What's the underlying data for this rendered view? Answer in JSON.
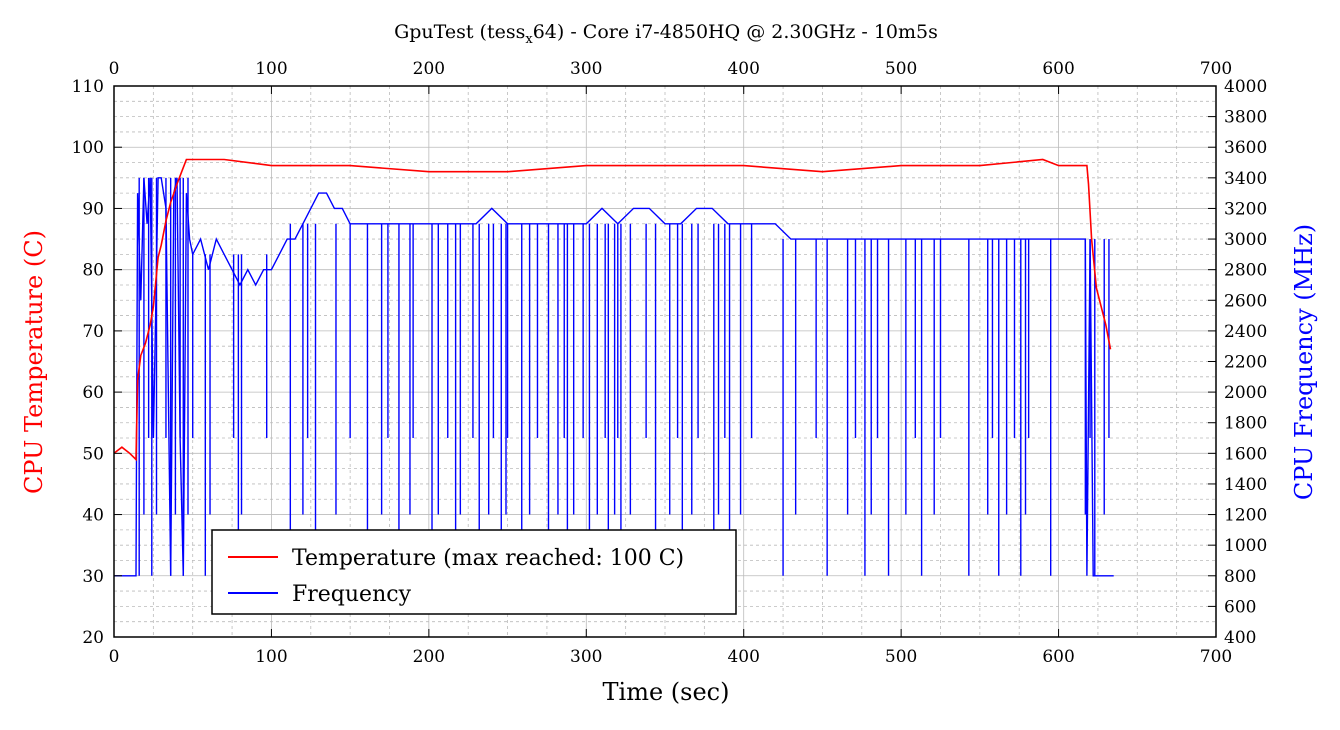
{
  "chart_data": {
    "type": "line",
    "title_main": "GpuTest (tess",
    "title_sub": "x",
    "title_rest": "64) - Core i7-4850HQ @ 2.30GHz - 10m5s",
    "xlabel": "Time (sec)",
    "ylabel_left": "CPU Temperature (C)",
    "ylabel_right": "CPU Frequency (MHz)",
    "xlim": [
      0,
      700
    ],
    "ylim_left": [
      20,
      110
    ],
    "ylim_right": [
      400,
      4000
    ],
    "xticks": [
      "0",
      "100",
      "200",
      "300",
      "400",
      "500",
      "600",
      "700"
    ],
    "yticks_left": [
      "20",
      "30",
      "40",
      "50",
      "60",
      "70",
      "80",
      "90",
      "100",
      "110"
    ],
    "yticks_right": [
      "400",
      "600",
      "800",
      "1000",
      "1200",
      "1400",
      "1600",
      "1800",
      "2000",
      "2200",
      "2400",
      "2600",
      "2800",
      "3000",
      "3200",
      "3400",
      "3600",
      "3800",
      "4000"
    ],
    "grid": true,
    "legend_position": "bottom-left",
    "series": [
      {
        "name": "Temperature (max reached: 100 C)",
        "axis": "left",
        "color": "#ff0000",
        "x": [
          0,
          5,
          10,
          14,
          15,
          17,
          20,
          23,
          25,
          28,
          30,
          33,
          36,
          40,
          43,
          46,
          48,
          55,
          70,
          100,
          150,
          200,
          250,
          300,
          350,
          400,
          450,
          500,
          550,
          590,
          600,
          612,
          618,
          619,
          621,
          624,
          627,
          630,
          633
        ],
        "y": [
          50,
          51,
          50,
          49,
          62,
          66,
          68,
          71,
          74,
          82,
          84,
          88,
          91,
          94,
          96,
          98,
          98,
          98,
          98,
          97,
          97,
          96,
          96,
          97,
          97,
          97,
          96,
          97,
          97,
          98,
          97,
          97,
          97,
          94,
          85,
          77,
          74,
          71,
          67
        ]
      },
      {
        "name": "Frequency",
        "axis": "right",
        "color": "#0000ff",
        "x": [
          0,
          14,
          15,
          17,
          19,
          21,
          23,
          25,
          28,
          30,
          33,
          36,
          38,
          40,
          42,
          44,
          46,
          48,
          50,
          55,
          60,
          65,
          70,
          75,
          80,
          85,
          90,
          95,
          100,
          105,
          110,
          115,
          120,
          125,
          130,
          135,
          140,
          145,
          150,
          155,
          160,
          165,
          170,
          180,
          190,
          200,
          210,
          220,
          230,
          240,
          250,
          260,
          270,
          280,
          290,
          300,
          310,
          320,
          330,
          340,
          350,
          360,
          370,
          380,
          390,
          400,
          410,
          420,
          430,
          440,
          450,
          460,
          470,
          480,
          490,
          500,
          510,
          520,
          530,
          540,
          550,
          560,
          570,
          580,
          590,
          600,
          610,
          615,
          617,
          618,
          620,
          622,
          625,
          628,
          630,
          632,
          635
        ],
        "y": [
          800,
          800,
          3300,
          2600,
          3400,
          3100,
          3400,
          1700,
          3400,
          3400,
          3200,
          800,
          3300,
          3400,
          1700,
          800,
          3300,
          3000,
          2900,
          3000,
          2800,
          3000,
          2900,
          2800,
          2700,
          2800,
          2700,
          2800,
          2800,
          2900,
          3000,
          3000,
          3100,
          3200,
          3300,
          3300,
          3200,
          3200,
          3100,
          3100,
          3100,
          3100,
          3100,
          3100,
          3100,
          3100,
          3100,
          3100,
          3100,
          3200,
          3100,
          3100,
          3100,
          3100,
          3100,
          3100,
          3200,
          3100,
          3200,
          3200,
          3100,
          3100,
          3200,
          3200,
          3100,
          3100,
          3100,
          3100,
          3000,
          3000,
          3000,
          3000,
          3000,
          3000,
          3000,
          3000,
          3000,
          3000,
          3000,
          3000,
          3000,
          3000,
          3000,
          3000,
          3000,
          3000,
          3000,
          3000,
          3000,
          800,
          3000,
          800,
          800,
          800,
          800,
          800,
          800
        ],
        "drops": [
          16,
          19,
          22,
          24,
          27,
          33,
          36,
          39,
          42,
          44,
          47,
          50,
          58,
          61,
          76,
          79,
          81,
          97,
          112,
          120,
          123,
          128,
          141,
          150,
          161,
          170,
          174,
          181,
          188,
          190,
          202,
          206,
          212,
          217,
          220,
          228,
          232,
          238,
          241,
          246,
          249,
          250,
          259,
          264,
          269,
          276,
          282,
          286,
          288,
          292,
          298,
          302,
          307,
          312,
          314,
          318,
          320,
          322,
          328,
          338,
          344,
          353,
          358,
          361,
          367,
          371,
          381,
          384,
          388,
          391,
          398,
          405,
          425,
          433,
          446,
          453,
          466,
          471,
          477,
          481,
          485,
          492,
          503,
          509,
          513,
          521,
          525,
          543,
          555,
          558,
          562,
          567,
          572,
          576,
          579,
          581,
          595,
          617,
          620,
          623,
          629,
          632
        ]
      }
    ]
  }
}
